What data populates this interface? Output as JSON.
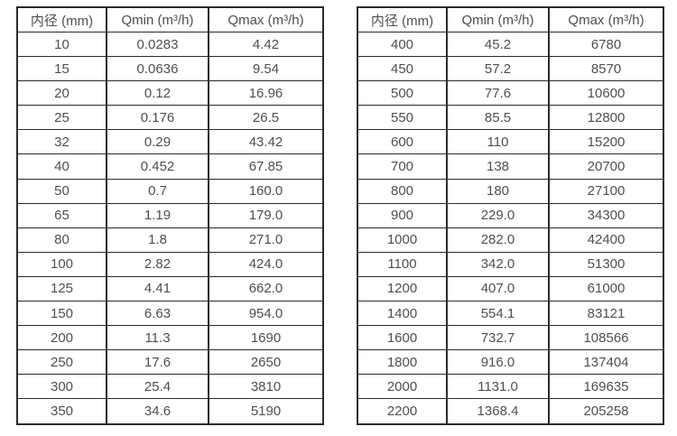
{
  "page": {
    "background": "#ffffff",
    "border_color": "#2b2b2b",
    "text_color": "#4f4f4f"
  },
  "chart_data": [
    {
      "type": "table",
      "columns": [
        "内径 (mm)",
        "Qmin (m³/h)",
        "Qmax (m³/h)"
      ],
      "rows": [
        [
          "10",
          "0.0283",
          "4.42"
        ],
        [
          "15",
          "0.0636",
          "9.54"
        ],
        [
          "20",
          "0.12",
          "16.96"
        ],
        [
          "25",
          "0.176",
          "26.5"
        ],
        [
          "32",
          "0.29",
          "43.42"
        ],
        [
          "40",
          "0.452",
          "67.85"
        ],
        [
          "50",
          "0.7",
          "160.0"
        ],
        [
          "65",
          "1.19",
          "179.0"
        ],
        [
          "80",
          "1.8",
          "271.0"
        ],
        [
          "100",
          "2.82",
          "424.0"
        ],
        [
          "125",
          "4.41",
          "662.0"
        ],
        [
          "150",
          "6.63",
          "954.0"
        ],
        [
          "200",
          "11.3",
          "1690"
        ],
        [
          "250",
          "17.6",
          "2650"
        ],
        [
          "300",
          "25.4",
          "3810"
        ],
        [
          "350",
          "34.6",
          "5190"
        ]
      ]
    },
    {
      "type": "table",
      "columns": [
        "内径 (mm)",
        "Qmin (m³/h)",
        "Qmax (m³/h)"
      ],
      "rows": [
        [
          "400",
          "45.2",
          "6780"
        ],
        [
          "450",
          "57.2",
          "8570"
        ],
        [
          "500",
          "77.6",
          "10600"
        ],
        [
          "550",
          "85.5",
          "12800"
        ],
        [
          "600",
          "110",
          "15200"
        ],
        [
          "700",
          "138",
          "20700"
        ],
        [
          "800",
          "180",
          "27100"
        ],
        [
          "900",
          "229.0",
          "34300"
        ],
        [
          "1000",
          "282.0",
          "42400"
        ],
        [
          "1100",
          "342.0",
          "51300"
        ],
        [
          "1200",
          "407.0",
          "61000"
        ],
        [
          "1400",
          "554.1",
          "83121"
        ],
        [
          "1600",
          "732.7",
          "108566"
        ],
        [
          "1800",
          "916.0",
          "137404"
        ],
        [
          "2000",
          "1131.0",
          "169635"
        ],
        [
          "2200",
          "1368.4",
          "205258"
        ]
      ]
    }
  ]
}
